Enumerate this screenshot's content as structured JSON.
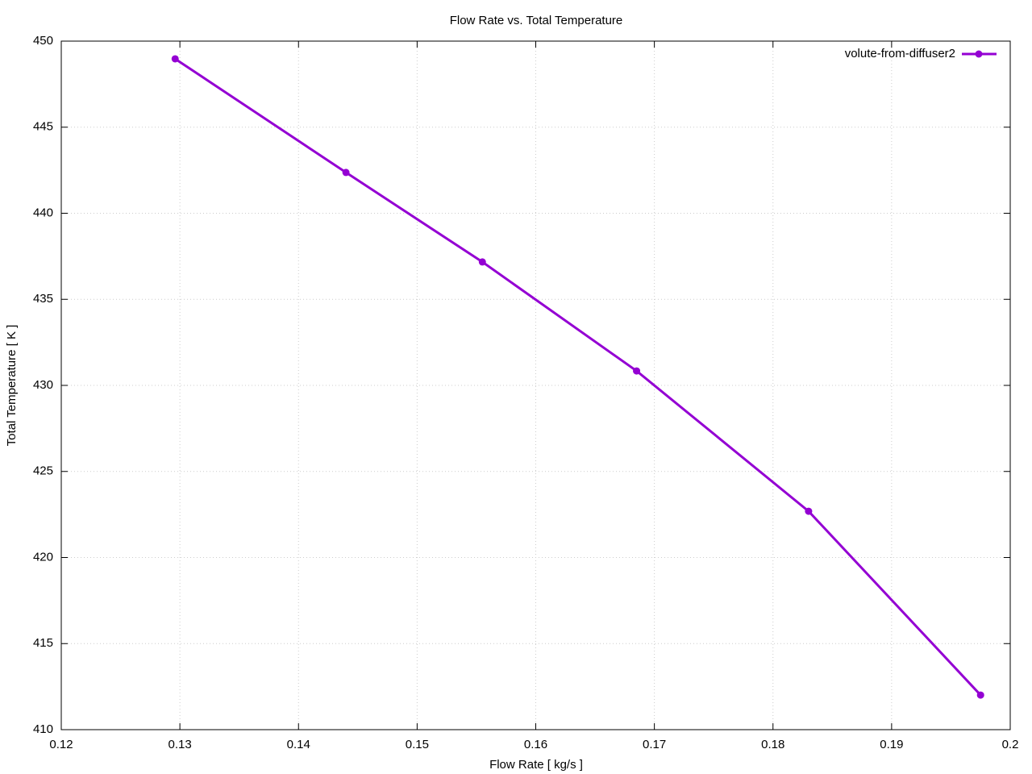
{
  "chart_data": {
    "type": "line",
    "title": "Flow Rate vs. Total Temperature",
    "x_label": "Flow Rate [ kg/s ]",
    "y_label": "Total Temperature [ K ]",
    "x": [
      0.1296,
      0.144,
      0.1555,
      0.1685,
      0.183,
      0.1975
    ],
    "series": [
      {
        "name": "volute-from-diffuser2",
        "color": "#9400d3",
        "values": [
          448.97,
          442.37,
          437.17,
          430.84,
          422.69,
          412.01
        ]
      }
    ],
    "xlim": [
      0.12,
      0.2
    ],
    "xticks": [
      0.12,
      0.13,
      0.14,
      0.15,
      0.16,
      0.17,
      0.18,
      0.19,
      0.2
    ],
    "ylim": [
      410,
      450
    ],
    "yticks": [
      410,
      415,
      420,
      425,
      430,
      435,
      440,
      445,
      450
    ],
    "grid": true,
    "legend": "top-right"
  }
}
